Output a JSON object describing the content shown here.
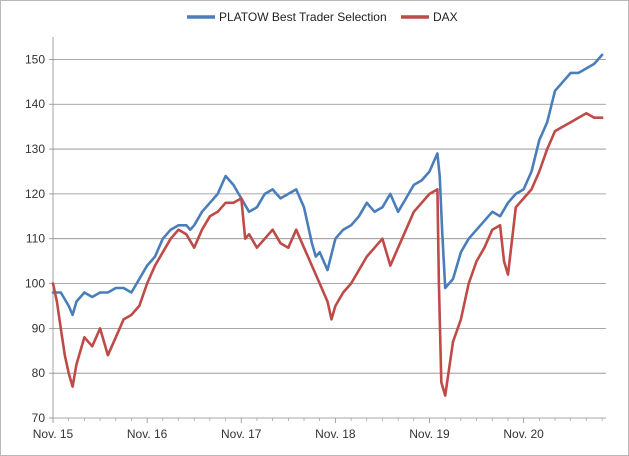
{
  "chart_data": {
    "type": "line",
    "title": "",
    "xlabel": "",
    "ylabel": "",
    "ylim": [
      70,
      155
    ],
    "yticks": [
      70,
      80,
      90,
      100,
      110,
      120,
      130,
      140,
      150
    ],
    "xtick_labels": [
      "Nov. 15",
      "Nov. 16",
      "Nov. 17",
      "Nov. 18",
      "Nov. 19",
      "Nov. 20"
    ],
    "xlim": [
      0,
      70.5
    ],
    "x_unit": "months since Nov. 15",
    "grid": "horizontal",
    "legend_position": "top-center",
    "series": [
      {
        "name": "PLATOW Best Trader Selection",
        "color": "#4a7ebb",
        "x": [
          0,
          1,
          2,
          2.5,
          3,
          4,
          5,
          6,
          7,
          8,
          9,
          10,
          11,
          12,
          13,
          14,
          15,
          16,
          17,
          17.5,
          18,
          19,
          20,
          21,
          22,
          23,
          24,
          25,
          26,
          27,
          28,
          29,
          30,
          31,
          32,
          33,
          33.5,
          34,
          35,
          36,
          37,
          38,
          39,
          40,
          41,
          42,
          43,
          44,
          45,
          46,
          47,
          48,
          48.5,
          49,
          49.3,
          49.6,
          50,
          51,
          52,
          53,
          54,
          55,
          56,
          57,
          58,
          59,
          60,
          61,
          62,
          63,
          64,
          65,
          66,
          67,
          68,
          69,
          70
        ],
        "values": [
          98,
          98,
          95,
          93,
          96,
          98,
          97,
          98,
          98,
          99,
          99,
          98,
          101,
          104,
          106,
          110,
          112,
          113,
          113,
          112,
          113,
          116,
          118,
          120,
          124,
          122,
          119,
          116,
          117,
          120,
          121,
          119,
          120,
          121,
          117,
          109,
          106,
          107,
          103,
          110,
          112,
          113,
          115,
          118,
          116,
          117,
          120,
          116,
          119,
          122,
          123,
          125,
          127,
          129,
          124,
          112,
          99,
          101,
          107,
          110,
          112,
          114,
          116,
          115,
          118,
          120,
          121,
          125,
          132,
          136,
          143,
          145,
          147,
          147,
          148,
          149,
          151
        ]
      },
      {
        "name": "DAX",
        "color": "#be4b48",
        "x": [
          0,
          0.5,
          1,
          1.5,
          2,
          2.5,
          3,
          4,
          5,
          6,
          7,
          8,
          9,
          10,
          11,
          12,
          13,
          14,
          15,
          16,
          17,
          18,
          19,
          20,
          21,
          22,
          23,
          24,
          24.5,
          25,
          26,
          27,
          28,
          29,
          30,
          31,
          32,
          33,
          34,
          35,
          35.5,
          36,
          37,
          38,
          39,
          40,
          41,
          42,
          43,
          44,
          45,
          46,
          47,
          48,
          49,
          49.2,
          49.5,
          50,
          51,
          52,
          53,
          54,
          55,
          56,
          57,
          57.5,
          58,
          59,
          60,
          61,
          62,
          63,
          64,
          65,
          66,
          67,
          68,
          69,
          70
        ],
        "values": [
          100,
          96,
          90,
          84,
          80,
          77,
          82,
          88,
          86,
          90,
          84,
          88,
          92,
          93,
          95,
          100,
          104,
          107,
          110,
          112,
          111,
          108,
          112,
          115,
          116,
          118,
          118,
          119,
          110,
          111,
          108,
          110,
          112,
          109,
          108,
          112,
          108,
          104,
          100,
          96,
          92,
          95,
          98,
          100,
          103,
          106,
          108,
          110,
          104,
          108,
          112,
          116,
          118,
          120,
          121,
          100,
          78,
          75,
          87,
          92,
          100,
          105,
          108,
          112,
          113,
          105,
          102,
          117,
          119,
          121,
          125,
          130,
          134,
          135,
          136,
          137,
          138,
          137,
          137
        ]
      }
    ]
  }
}
